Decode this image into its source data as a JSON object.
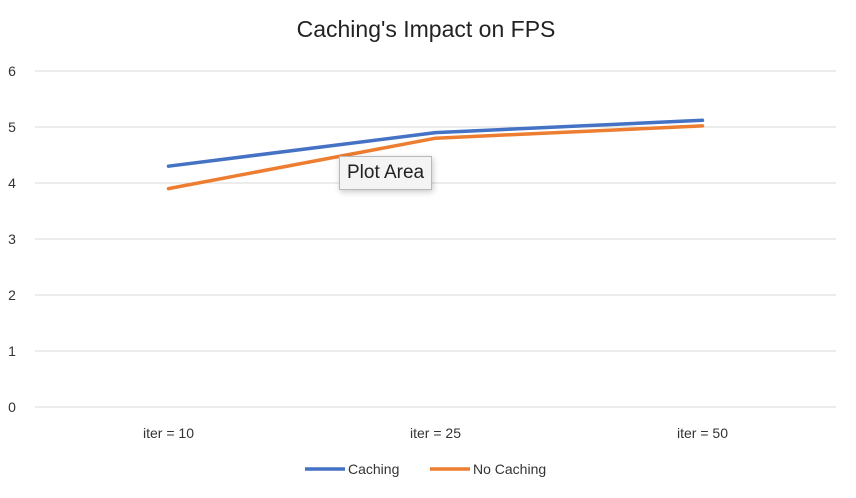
{
  "chart_data": {
    "type": "line",
    "title": "Caching's Impact on FPS",
    "xlabel": "",
    "ylabel": "",
    "categories": [
      "iter = 10",
      "iter = 25",
      "iter = 50"
    ],
    "ylim": [
      0,
      6
    ],
    "yticks": [
      0,
      1,
      2,
      3,
      4,
      5,
      6
    ],
    "grid": true,
    "legend_position": "bottom",
    "series": [
      {
        "name": "Caching",
        "values": [
          4.3,
          4.9,
          5.12
        ],
        "color": "#4472C4"
      },
      {
        "name": "No Caching",
        "values": [
          3.9,
          4.8,
          5.02
        ],
        "color": "#ED7D31"
      }
    ]
  },
  "tooltip": {
    "label": "Plot Area"
  }
}
